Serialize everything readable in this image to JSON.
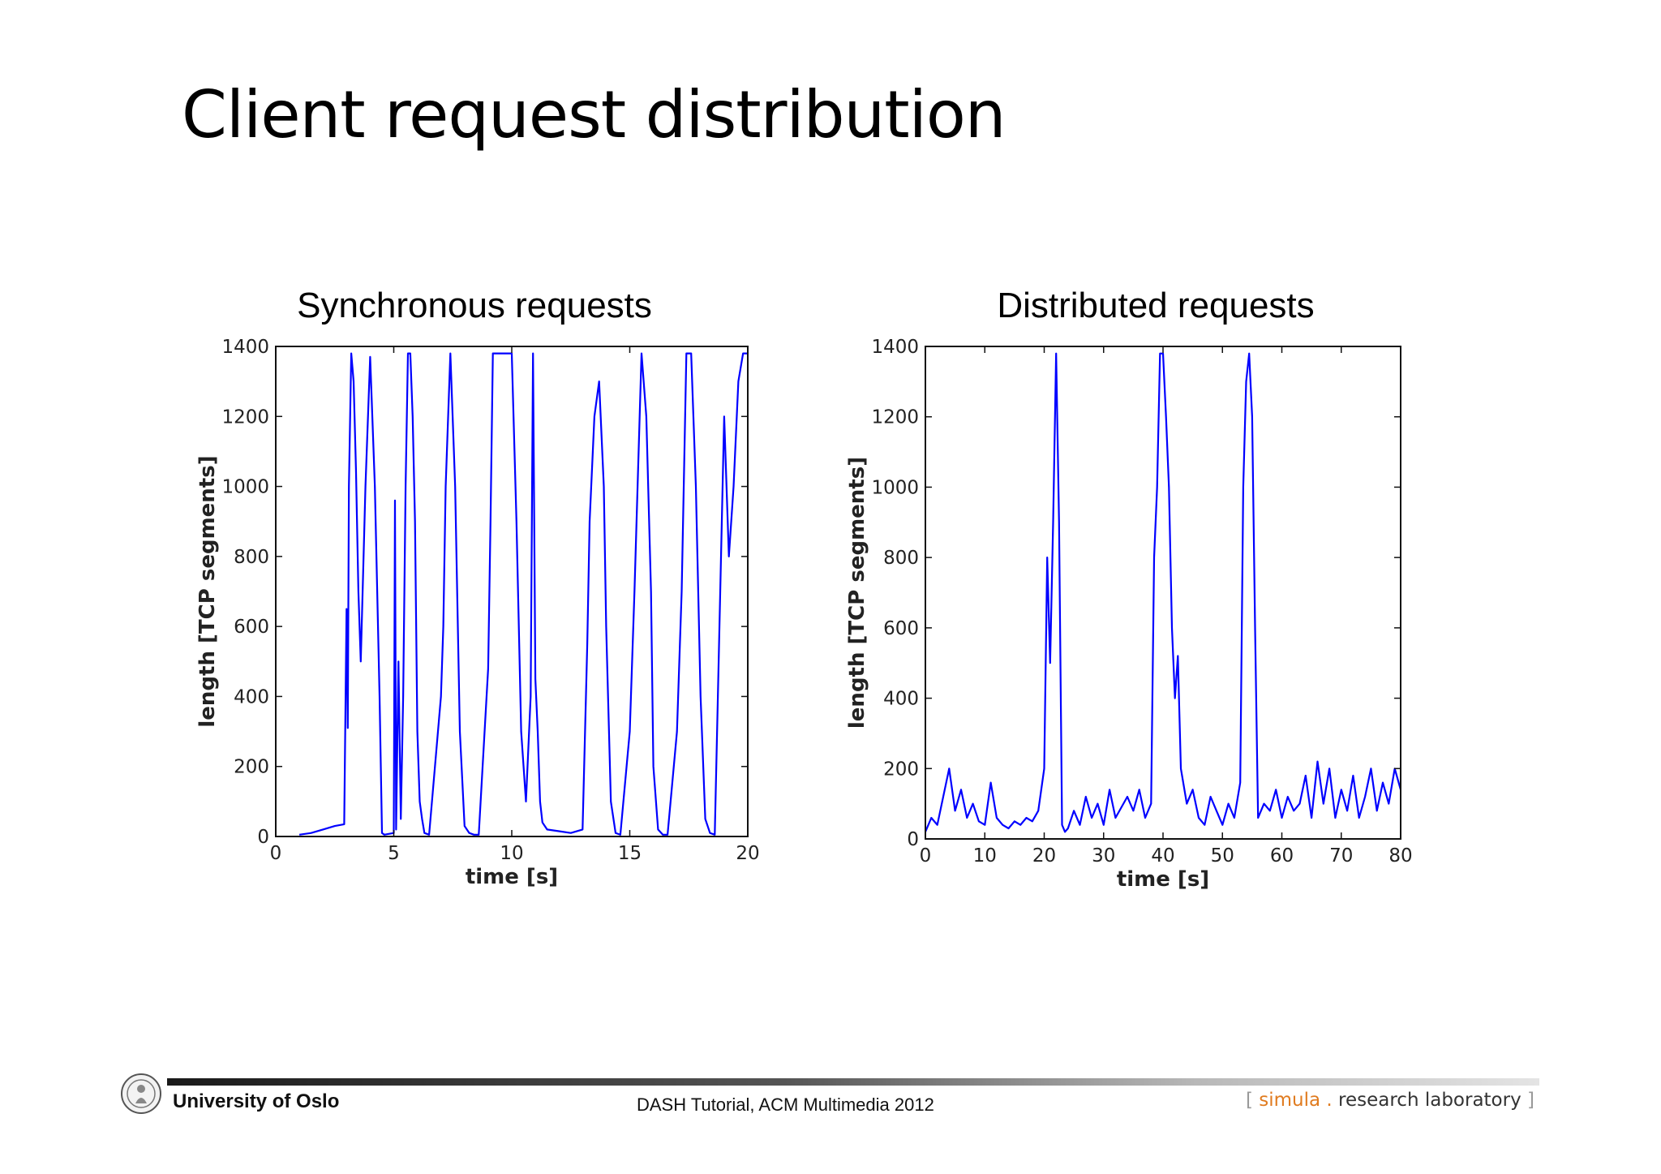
{
  "slide": {
    "title": "Client request distribution"
  },
  "footer": {
    "university": "University of Oslo",
    "event": "DASH Tutorial, ACM Multimedia 2012",
    "lab_open": "[",
    "lab_brand": "simula",
    "lab_dot": ".",
    "lab_rest": "research laboratory",
    "lab_close": "]"
  },
  "colors": {
    "series": "#0000ff",
    "brand_accent": "#e07b1f"
  },
  "chart_data": [
    {
      "type": "line",
      "title": "Synchronous requests",
      "xlabel": "time [s]",
      "ylabel": "length [TCP segments]",
      "xlim": [
        0,
        20
      ],
      "ylim": [
        0,
        1400
      ],
      "xticks": [
        0,
        5,
        10,
        15,
        20
      ],
      "yticks": [
        0,
        200,
        400,
        600,
        800,
        1000,
        1200,
        1400
      ],
      "grid": false,
      "series": [
        {
          "color": "#0000ff",
          "x": [
            1.0,
            1.5,
            2.0,
            2.5,
            2.9,
            3.0,
            3.05,
            3.1,
            3.2,
            3.3,
            3.4,
            3.5,
            3.6,
            3.8,
            4.0,
            4.2,
            4.4,
            4.5,
            4.6,
            5.0,
            5.05,
            5.1,
            5.2,
            5.3,
            5.4,
            5.5,
            5.6,
            5.7,
            5.8,
            5.9,
            6.0,
            6.1,
            6.2,
            6.3,
            6.5,
            7.0,
            7.1,
            7.2,
            7.4,
            7.6,
            7.8,
            8.0,
            8.2,
            8.4,
            8.6,
            9.0,
            9.1,
            9.2,
            9.4,
            9.6,
            9.8,
            10.0,
            10.2,
            10.4,
            10.6,
            10.8,
            10.9,
            11.0,
            11.1,
            11.2,
            11.3,
            11.5,
            12.0,
            12.5,
            13.0,
            13.2,
            13.3,
            13.5,
            13.7,
            13.9,
            14.0,
            14.2,
            14.4,
            14.6,
            15.0,
            15.2,
            15.5,
            15.7,
            15.9,
            16.0,
            16.2,
            16.4,
            16.6,
            17.0,
            17.2,
            17.4,
            17.6,
            17.8,
            18.0,
            18.2,
            18.4,
            18.6,
            19.0,
            19.2,
            19.4,
            19.6,
            19.8,
            20.0
          ],
          "y": [
            5,
            10,
            20,
            30,
            35,
            650,
            310,
            1000,
            1380,
            1300,
            1050,
            700,
            500,
            1000,
            1370,
            1000,
            400,
            10,
            5,
            10,
            960,
            20,
            500,
            50,
            400,
            1000,
            1380,
            1380,
            1200,
            900,
            300,
            100,
            50,
            10,
            5,
            400,
            600,
            1000,
            1380,
            1000,
            300,
            30,
            10,
            5,
            5,
            480,
            900,
            1380,
            1380,
            1380,
            1380,
            1380,
            900,
            300,
            100,
            400,
            1380,
            450,
            300,
            100,
            40,
            20,
            15,
            10,
            20,
            550,
            900,
            1200,
            1300,
            1000,
            600,
            100,
            10,
            5,
            300,
            700,
            1380,
            1200,
            700,
            200,
            20,
            5,
            5,
            300,
            700,
            1380,
            1380,
            1000,
            400,
            50,
            10,
            5,
            1200,
            800,
            1000,
            1300,
            1380,
            1380
          ]
        }
      ]
    },
    {
      "type": "line",
      "title": "Distributed requests",
      "xlabel": "time [s]",
      "ylabel": "length [TCP segments]",
      "xlim": [
        0,
        80
      ],
      "ylim": [
        0,
        1400
      ],
      "xticks": [
        0,
        10,
        20,
        30,
        40,
        50,
        60,
        70,
        80
      ],
      "yticks": [
        0,
        200,
        400,
        600,
        800,
        1000,
        1200,
        1400
      ],
      "grid": false,
      "series": [
        {
          "color": "#0000ff",
          "x": [
            0,
            1,
            2,
            3,
            4,
            5,
            6,
            7,
            8,
            9,
            10,
            11,
            12,
            13,
            14,
            15,
            16,
            17,
            18,
            19,
            20,
            20.5,
            21,
            21.5,
            22,
            22.5,
            23,
            23.5,
            24,
            25,
            26,
            27,
            28,
            29,
            30,
            31,
            32,
            33,
            34,
            35,
            36,
            37,
            38,
            38.5,
            39,
            39.5,
            40,
            40.5,
            41,
            41.5,
            42,
            42.5,
            43,
            44,
            45,
            46,
            47,
            48,
            49,
            50,
            51,
            52,
            53,
            53.5,
            54,
            54.5,
            55,
            55.5,
            56,
            57,
            58,
            59,
            60,
            61,
            62,
            63,
            64,
            65,
            66,
            67,
            68,
            69,
            70,
            71,
            72,
            73,
            74,
            75,
            76,
            77,
            78,
            79,
            80
          ],
          "y": [
            20,
            60,
            40,
            120,
            200,
            80,
            140,
            60,
            100,
            50,
            40,
            160,
            60,
            40,
            30,
            50,
            40,
            60,
            50,
            80,
            200,
            800,
            500,
            900,
            1380,
            900,
            40,
            20,
            30,
            80,
            40,
            120,
            60,
            100,
            40,
            140,
            60,
            90,
            120,
            80,
            140,
            60,
            100,
            800,
            1000,
            1380,
            1380,
            1200,
            1000,
            600,
            400,
            520,
            200,
            100,
            140,
            60,
            40,
            120,
            80,
            40,
            100,
            60,
            160,
            1000,
            1300,
            1380,
            1200,
            600,
            60,
            100,
            80,
            140,
            60,
            120,
            80,
            100,
            180,
            60,
            220,
            100,
            200,
            60,
            140,
            80,
            180,
            60,
            120,
            200,
            80,
            160,
            100,
            200,
            140
          ]
        }
      ]
    }
  ]
}
